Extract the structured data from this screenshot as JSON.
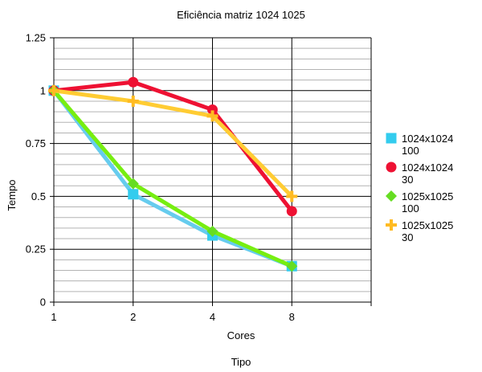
{
  "chart_data": {
    "type": "line",
    "title": "Eficiência matriz 1024 1025",
    "xlabel": "Cores",
    "footer_label": "Tipo",
    "ylabel": "Tempo",
    "categories": [
      "1",
      "2",
      "4",
      "8"
    ],
    "ylim": [
      0,
      1.25
    ],
    "y_ticks": [
      {
        "value": 0,
        "label": "0"
      },
      {
        "value": 0.25,
        "label": "0.25"
      },
      {
        "value": 0.5,
        "label": "0.5"
      },
      {
        "value": 0.75,
        "label": "0.75"
      },
      {
        "value": 1,
        "label": "1"
      },
      {
        "value": 1.25,
        "label": "1.25"
      }
    ],
    "grid": true,
    "legend_position": "right",
    "series": [
      {
        "name": [
          "1024x1024",
          "100"
        ],
        "values": [
          1.0,
          0.51,
          0.315,
          0.17
        ],
        "color": "#66ccee",
        "marker_color": "#33ccee",
        "marker": "square"
      },
      {
        "name": [
          "1024x1024",
          "30"
        ],
        "values": [
          1.0,
          1.04,
          0.91,
          0.43
        ],
        "color": "#ee1133",
        "marker_color": "#ee1133",
        "marker": "circle"
      },
      {
        "name": [
          "1025x1025",
          "100"
        ],
        "values": [
          1.0,
          0.56,
          0.335,
          0.17
        ],
        "color": "#77ee11",
        "marker_color": "#66dd22",
        "marker": "diamond"
      },
      {
        "name": [
          "1025x1025",
          "30"
        ],
        "values": [
          1.0,
          0.95,
          0.88,
          0.5
        ],
        "color": "#ffcc33",
        "marker_color": "#ffbb22",
        "marker": "plus"
      }
    ]
  }
}
